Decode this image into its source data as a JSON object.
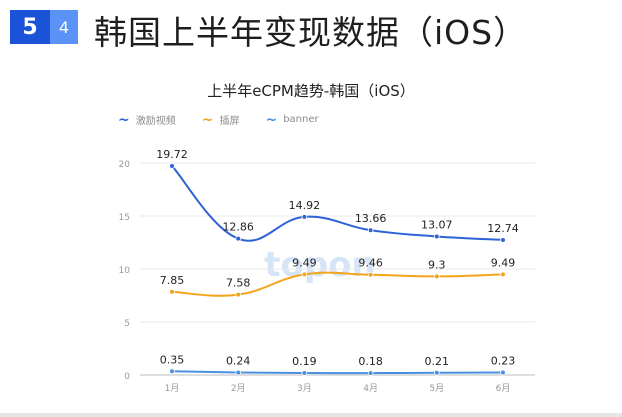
{
  "badge": {
    "main": "5",
    "sub": "4"
  },
  "page_title": "韩国上半年变现数据（iOS）",
  "watermark": "topon",
  "colors": {
    "series": [
      "#2e62d6",
      "#f2a51b",
      "#4a90e2"
    ],
    "grid": "#e8e8e8",
    "axis": "#999999"
  },
  "chart_data": {
    "type": "line",
    "title": "上半年eCPM趋势-韩国（iOS）",
    "categories": [
      "1月",
      "2月",
      "3月",
      "4月",
      "5月",
      "6月"
    ],
    "ylim": [
      0,
      20
    ],
    "yticks": [
      "0",
      "5",
      "10",
      "15",
      "20"
    ],
    "grid": true,
    "legend": "top-left",
    "series": [
      {
        "name": "激励视频",
        "values": [
          19.72,
          12.86,
          14.92,
          13.66,
          13.07,
          12.74
        ],
        "labels": [
          "19.72",
          "12.86",
          "14.92",
          "13.66",
          "13.07",
          "12.74"
        ]
      },
      {
        "name": "插屏",
        "values": [
          7.85,
          7.58,
          9.49,
          9.46,
          9.3,
          9.49
        ],
        "labels": [
          "7.85",
          "7.58",
          "9.49",
          "9.46",
          "9.3",
          "9.49"
        ]
      },
      {
        "name": "banner",
        "values": [
          0.35,
          0.24,
          0.19,
          0.18,
          0.21,
          0.23
        ],
        "labels": [
          "0.35",
          "0.24",
          "0.19",
          "0.18",
          "0.21",
          "0.23"
        ]
      }
    ]
  }
}
